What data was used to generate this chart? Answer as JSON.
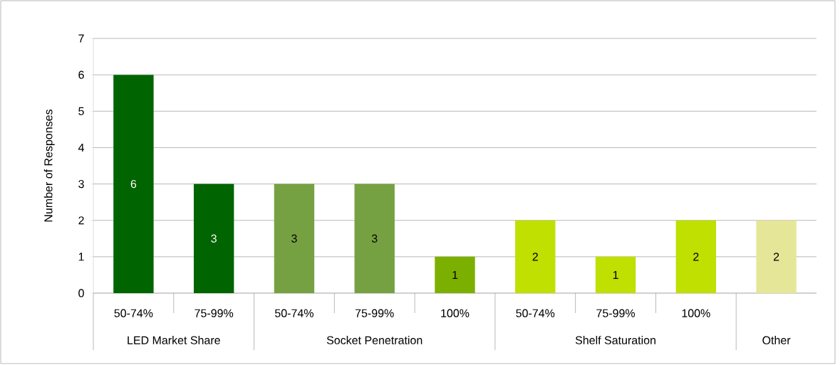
{
  "chart_data": {
    "type": "bar",
    "categories": [
      "50-74%",
      "75-99%",
      "50-74%",
      "75-99%",
      "100%",
      "50-74%",
      "75-99%",
      "100%",
      null
    ],
    "values": [
      6,
      3,
      3,
      3,
      1,
      2,
      1,
      2,
      2
    ],
    "colors": [
      "#006400",
      "#006400",
      "#76a142",
      "#76a142",
      "#7cb000",
      "#bfe000",
      "#bfe000",
      "#bfe000",
      "#e6e699"
    ],
    "ylabel": "Number of Responses",
    "ylim": [
      0,
      7
    ],
    "yticks": [
      0,
      1,
      2,
      3,
      4,
      5,
      6,
      7
    ],
    "grid": "y",
    "data_labels": true,
    "annotations": [
      "LED Market Share",
      "Socket Penetration",
      "Shelf Saturation",
      "Other"
    ]
  }
}
